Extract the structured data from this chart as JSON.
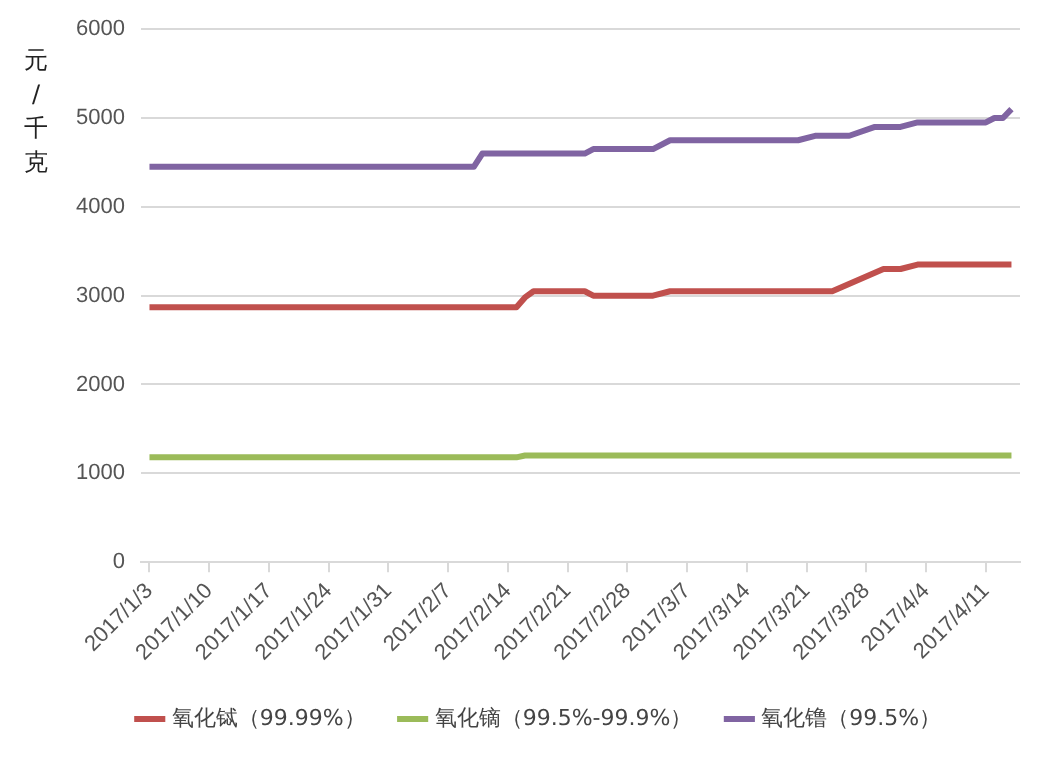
{
  "chart_data": {
    "type": "line",
    "ylabel": "元/千克",
    "xlim": [
      "2017-01-02",
      "2017-04-15"
    ],
    "xticks": [
      {
        "value": "2017-01-03",
        "label": "2017/1/3"
      },
      {
        "value": "2017-01-10",
        "label": "2017/1/10"
      },
      {
        "value": "2017-01-17",
        "label": "2017/1/17"
      },
      {
        "value": "2017-01-24",
        "label": "2017/1/24"
      },
      {
        "value": "2017-01-31",
        "label": "2017/1/31"
      },
      {
        "value": "2017-02-07",
        "label": "2017/2/7"
      },
      {
        "value": "2017-02-14",
        "label": "2017/2/14"
      },
      {
        "value": "2017-02-21",
        "label": "2017/2/21"
      },
      {
        "value": "2017-02-28",
        "label": "2017/2/28"
      },
      {
        "value": "2017-03-07",
        "label": "2017/3/7"
      },
      {
        "value": "2017-03-14",
        "label": "2017/3/14"
      },
      {
        "value": "2017-03-21",
        "label": "2017/3/21"
      },
      {
        "value": "2017-03-28",
        "label": "2017/3/28"
      },
      {
        "value": "2017-04-04",
        "label": "2017/4/4"
      },
      {
        "value": "2017-04-11",
        "label": "2017/4/11"
      }
    ],
    "ylim": [
      0,
      6000
    ],
    "yticks": [
      0,
      1000,
      2000,
      3000,
      4000,
      5000,
      6000
    ],
    "grid": "y",
    "legend": "bottom",
    "marker": "none",
    "line_style": "solid",
    "series": [
      {
        "name": "氧化铽（99.99%）",
        "color": "#c0504d",
        "x": [
          "2017-01-03",
          "2017-02-15",
          "2017-02-16",
          "2017-02-17",
          "2017-02-23",
          "2017-02-24",
          "2017-03-03",
          "2017-03-05",
          "2017-03-24",
          "2017-03-30",
          "2017-04-01",
          "2017-04-03",
          "2017-04-14"
        ],
        "values": [
          2870,
          2870,
          2980,
          3050,
          3050,
          3000,
          3000,
          3050,
          3050,
          3300,
          3300,
          3350,
          3350
        ]
      },
      {
        "name": "氧化镝（99.5%-99.9%）",
        "color": "#9bbb59",
        "x": [
          "2017-01-03",
          "2017-02-15",
          "2017-02-16",
          "2017-04-14"
        ],
        "values": [
          1180,
          1180,
          1200,
          1200
        ]
      },
      {
        "name": "氧化镥（99.5%）",
        "color": "#8064a2",
        "x": [
          "2017-01-03",
          "2017-02-10",
          "2017-02-11",
          "2017-02-23",
          "2017-02-24",
          "2017-03-03",
          "2017-03-05",
          "2017-03-20",
          "2017-03-22",
          "2017-03-26",
          "2017-03-29",
          "2017-04-01",
          "2017-04-03",
          "2017-04-11",
          "2017-04-12",
          "2017-04-13",
          "2017-04-14"
        ],
        "values": [
          4450,
          4450,
          4600,
          4600,
          4650,
          4650,
          4750,
          4750,
          4800,
          4800,
          4900,
          4900,
          4950,
          4950,
          5000,
          5000,
          5100
        ]
      }
    ]
  }
}
